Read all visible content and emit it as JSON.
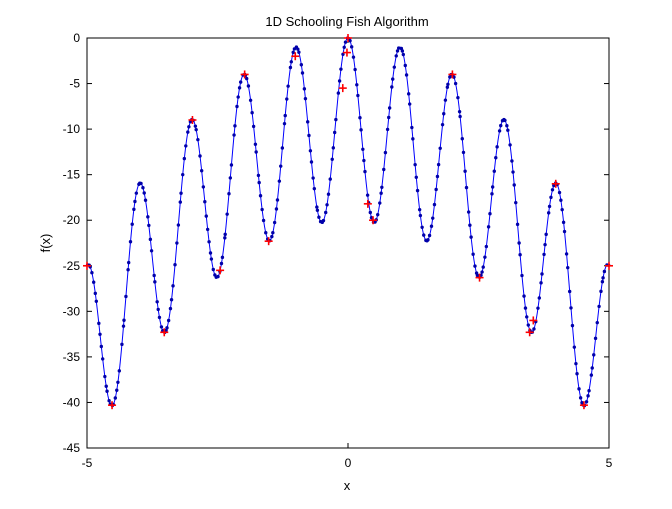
{
  "chart_data": {
    "type": "line",
    "title": "1D Schooling Fish Algorithm",
    "xlabel": "x",
    "ylabel": "f(x)",
    "xlim": [
      -5,
      5
    ],
    "ylim": [
      -45,
      0
    ],
    "xticks": [
      -5,
      0,
      5
    ],
    "yticks": [
      0,
      -5,
      -10,
      -15,
      -20,
      -25,
      -30,
      -35,
      -40,
      -45
    ],
    "xtick_labels": [
      "-5",
      "0",
      "5"
    ],
    "ytick_labels": [
      "0",
      "-5",
      "-10",
      "-15",
      "-20",
      "-25",
      "-30",
      "-35",
      "-40",
      "-45"
    ],
    "grid": false,
    "legend": "none",
    "function_curve": {
      "expression": "-(x^2 - 10*cos(2*pi*x) + 10)",
      "color": "#0000ff",
      "marker_color": "#0000aa"
    },
    "highlighted_points": {
      "color": "#ff0000",
      "marker": "+",
      "x": [
        -5.0,
        -4.52,
        -3.52,
        -2.98,
        -2.45,
        -1.98,
        -1.52,
        -1.01,
        -0.1,
        -0.02,
        0.0,
        0.38,
        0.48,
        2.0,
        2.52,
        3.48,
        3.55,
        3.98,
        4.52,
        5.0
      ],
      "y": [
        -25.0,
        -40.3,
        -32.3,
        -9.0,
        -25.5,
        -4.0,
        -22.3,
        -2.0,
        -5.5,
        -1.6,
        0.0,
        -18.2,
        -20.0,
        -4.0,
        -26.3,
        -32.3,
        -31.0,
        -16.0,
        -40.3,
        -25.0
      ]
    }
  }
}
